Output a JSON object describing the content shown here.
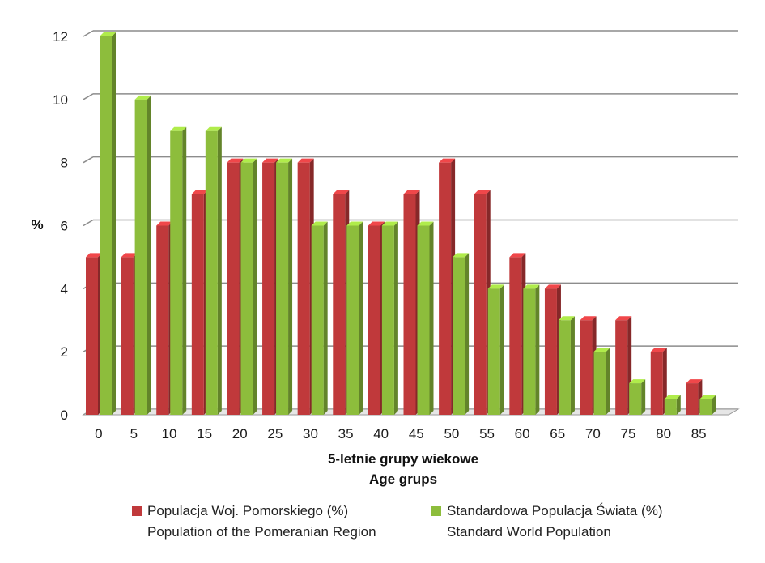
{
  "chart_data": {
    "type": "bar",
    "categories": [
      "0",
      "5",
      "10",
      "15",
      "20",
      "25",
      "30",
      "35",
      "40",
      "45",
      "50",
      "55",
      "60",
      "65",
      "70",
      "75",
      "80",
      "85"
    ],
    "series": [
      {
        "name": "Populacja Woj. Pomorskiego (%)",
        "name_en": "Population of the Pomeranian Region",
        "color": "#c0393b",
        "values": [
          5,
          5,
          6,
          7,
          8,
          8,
          8,
          7,
          6,
          7,
          8,
          7,
          5,
          4,
          3,
          3,
          2,
          1
        ]
      },
      {
        "name": "Standardowa Populacja Świata (%)",
        "name_en": "Standard World Population",
        "color": "#8dbd3c",
        "values": [
          12,
          10,
          9,
          9,
          8,
          8,
          6,
          6,
          6,
          6,
          5,
          4,
          4,
          3,
          2,
          1,
          0.5,
          0.5
        ]
      }
    ],
    "yticks": [
      "0",
      "2",
      "4",
      "6",
      "8",
      "10",
      "12"
    ],
    "ylim": [
      0,
      12
    ],
    "ylabel": "%",
    "xlabel": "5-letnie grupy wiekowe",
    "xlabel_en": "Age grups",
    "grid": true,
    "legend_position": "bottom"
  }
}
